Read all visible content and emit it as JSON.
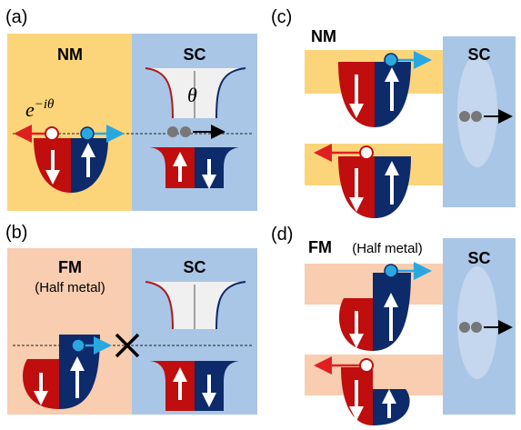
{
  "panels": [
    {
      "label": "(a)",
      "left_title": "NM",
      "right_title": "SC",
      "phase_base": "e",
      "phase_exponent": "−iθ",
      "angle": "θ"
    },
    {
      "label": "(b)",
      "left_title": "FM",
      "left_subtitle": "(Half metal)",
      "right_title": "SC"
    },
    {
      "label": "(c)",
      "left_title": "NM",
      "right_title": "SC"
    },
    {
      "label": "(d)",
      "left_title": "FM",
      "left_subtitle": "(Half metal)",
      "right_title": "SC"
    }
  ]
}
